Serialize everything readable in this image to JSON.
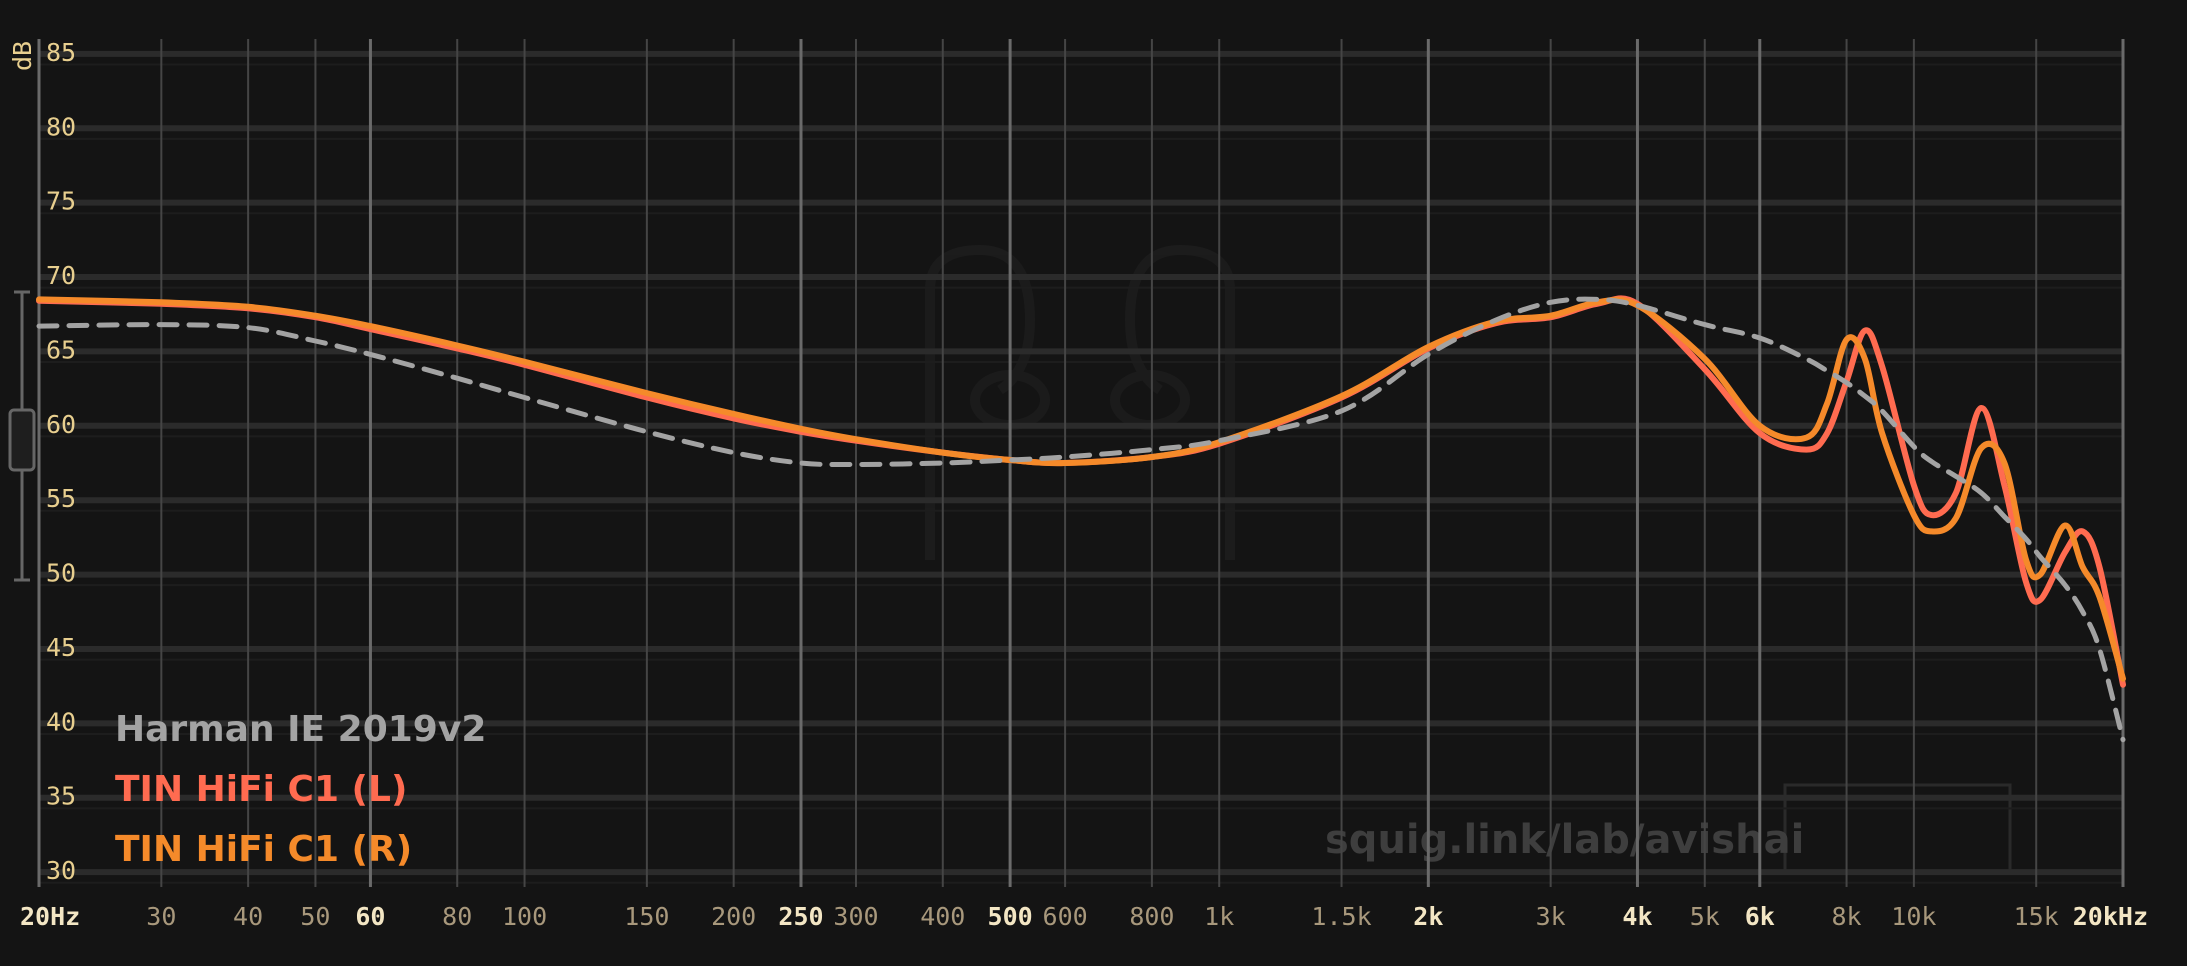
{
  "chart_data": {
    "type": "line",
    "xscale": "log",
    "grid": true,
    "legend": "lower left",
    "ylabel": "dB",
    "watermark": "squig.link/lab/avishai",
    "xlim": [
      20,
      20000
    ],
    "ylim": [
      29,
      86
    ],
    "yticks": [
      30,
      35,
      40,
      45,
      50,
      55,
      60,
      65,
      70,
      75,
      80,
      85
    ],
    "xticks": [
      {
        "value": 20,
        "label": "20Hz"
      },
      30,
      40,
      50,
      60,
      80,
      100,
      150,
      200,
      250,
      300,
      400,
      500,
      600,
      800,
      {
        "value": 1000,
        "label": "1k"
      },
      {
        "value": 1500,
        "label": "1.5k"
      },
      {
        "value": 2000,
        "label": "2k"
      },
      {
        "value": 3000,
        "label": "3k"
      },
      {
        "value": 4000,
        "label": "4k"
      },
      {
        "value": 5000,
        "label": "5k"
      },
      {
        "value": 6000,
        "label": "6k"
      },
      {
        "value": 8000,
        "label": "8k"
      },
      {
        "value": 10000,
        "label": "10k"
      },
      {
        "value": 15000,
        "label": "15k"
      },
      {
        "value": 20000,
        "label": "20kHz"
      }
    ],
    "x": [
      20,
      30,
      40,
      50,
      60,
      80,
      100,
      150,
      200,
      250,
      300,
      400,
      500,
      600,
      800,
      1000,
      1500,
      2000,
      2500,
      3000,
      3500,
      4000,
      5000,
      6000,
      7000,
      7500,
      8000,
      8500,
      9000,
      10000,
      10600,
      11500,
      12500,
      13500,
      14500,
      15200,
      16500,
      17500,
      18500,
      20000
    ],
    "series": [
      {
        "name": "Harman IE 2019v2",
        "color": "#a3a3a3",
        "dashed": true,
        "values": [
          66.7,
          66.8,
          66.6,
          65.7,
          64.8,
          63.2,
          61.9,
          59.6,
          58.2,
          57.5,
          57.4,
          57.5,
          57.7,
          57.9,
          58.4,
          59.0,
          61.0,
          64.8,
          67.1,
          68.3,
          68.5,
          68.1,
          66.8,
          65.9,
          64.5,
          63.7,
          62.9,
          62.0,
          61.0,
          58.6,
          57.6,
          56.6,
          55.5,
          53.9,
          52.4,
          51.2,
          49.3,
          47.5,
          45.0,
          38.9
        ]
      },
      {
        "name": "TIN HiFi C1 (L)",
        "color": "#ff6b50",
        "dashed": false,
        "values": [
          68.4,
          68.2,
          67.9,
          67.3,
          66.5,
          65.2,
          64.1,
          61.9,
          60.5,
          59.6,
          59.0,
          58.2,
          57.7,
          57.5,
          57.9,
          58.8,
          61.9,
          65.2,
          66.9,
          67.3,
          68.2,
          68.2,
          63.8,
          59.5,
          58.4,
          59.5,
          63.0,
          66.4,
          64.0,
          56.0,
          54.0,
          55.5,
          61.2,
          56.0,
          49.5,
          48.3,
          51.5,
          52.9,
          50.5,
          42.6
        ]
      },
      {
        "name": "TIN HiFi C1 (R)",
        "color": "#f58a2a",
        "dashed": false,
        "values": [
          68.5,
          68.3,
          68.0,
          67.4,
          66.7,
          65.4,
          64.3,
          62.2,
          60.8,
          59.8,
          59.1,
          58.2,
          57.7,
          57.5,
          57.9,
          58.9,
          62.0,
          65.3,
          67.0,
          67.4,
          68.3,
          68.1,
          64.5,
          60.0,
          59.2,
          61.5,
          65.8,
          64.5,
          59.5,
          54.0,
          52.9,
          53.8,
          58.5,
          57.5,
          51.0,
          50.0,
          53.3,
          50.5,
          48.5,
          43.0
        ]
      }
    ]
  }
}
